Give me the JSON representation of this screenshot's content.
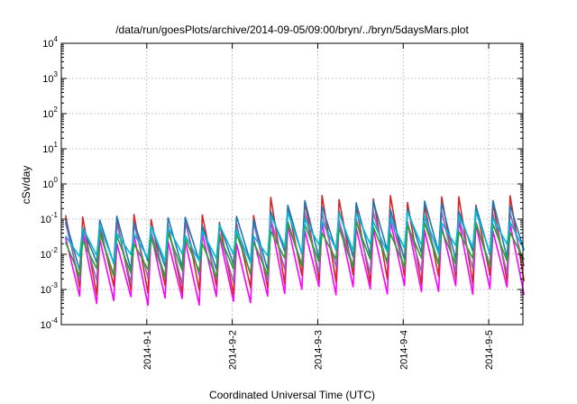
{
  "chart_data": {
    "type": "line",
    "title": "/data/run/goesPlots/archive/2014-09-05/09:00/bryn/../bryn/5daysMars.plot",
    "xlabel": "Coordinated Universal Time (UTC)",
    "ylabel": "cSv/day",
    "yscale": "log",
    "ylim": [
      0.0001,
      10000
    ],
    "xlim": [
      "2014-08-31 00:00",
      "2014-09-05 10:00"
    ],
    "grid": true,
    "legend": "none",
    "y_ticks": [
      {
        "base": "10",
        "exp": "-4"
      },
      {
        "base": "10",
        "exp": "-3"
      },
      {
        "base": "10",
        "exp": "-2"
      },
      {
        "base": "10",
        "exp": "-1"
      },
      {
        "base": "10",
        "exp": "0"
      },
      {
        "base": "10",
        "exp": "1"
      },
      {
        "base": "10",
        "exp": "2"
      },
      {
        "base": "10",
        "exp": "3"
      },
      {
        "base": "10",
        "exp": "4"
      }
    ],
    "x_ticks": [
      "2014-9-1",
      "2014-9-2",
      "2014-9-3",
      "2014-9-4",
      "2014-9-5"
    ],
    "x_tick_days": [
      1,
      2,
      3,
      4,
      5
    ],
    "day_range": [
      0.05,
      5.42
    ],
    "cycle_days": 0.2,
    "series_colors": [
      "#ff00ff",
      "#d62728",
      "#9467bd",
      "#1f77b4",
      "#2ca02c",
      "#00bcd4",
      "#e41a1c"
    ],
    "series": [
      {
        "color": "#ff00ff",
        "peak_first": 0.03,
        "peak_second": 0.07,
        "trough_first": 0.0005,
        "trough_second": 0.001
      },
      {
        "color": "#d62728",
        "peak_first": 0.1,
        "peak_second": 0.35,
        "trough_first": 0.001,
        "trough_second": 0.002
      },
      {
        "color": "#9467bd",
        "peak_first": 0.06,
        "peak_second": 0.12,
        "trough_first": 0.002,
        "trough_second": 0.004
      },
      {
        "color": "#1f77b4",
        "peak_first": 0.09,
        "peak_second": 0.25,
        "trough_first": 0.005,
        "trough_second": 0.01
      },
      {
        "color": "#2ca02c",
        "peak_first": 0.03,
        "peak_second": 0.06,
        "trough_first": 0.003,
        "trough_second": 0.006
      },
      {
        "color": "#00bcd4",
        "peak_first": 0.05,
        "peak_second": 0.12,
        "trough_first": 0.008,
        "trough_second": 0.015
      }
    ],
    "second_phase_start_day": 2.4
  }
}
